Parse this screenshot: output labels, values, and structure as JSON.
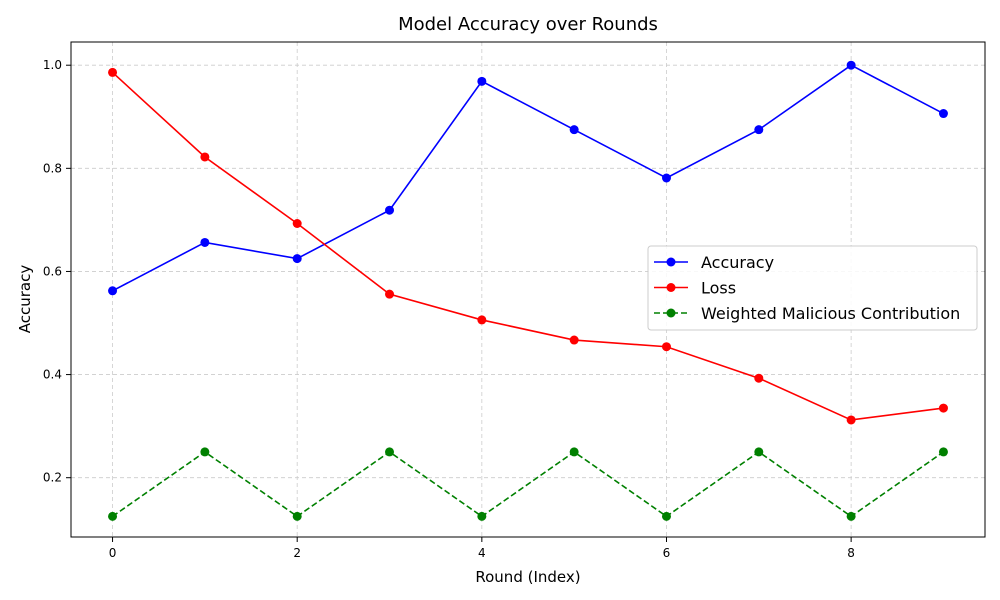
{
  "chart_data": {
    "type": "line",
    "title": "Model Accuracy over Rounds",
    "xlabel": "Round (Index)",
    "ylabel": "Accuracy",
    "x": [
      0,
      1,
      2,
      3,
      4,
      5,
      6,
      7,
      8,
      9
    ],
    "xlim": [
      -0.45,
      9.45
    ],
    "ylim": [
      0.085,
      1.045
    ],
    "xticks": [
      "0",
      "2",
      "4",
      "6",
      "8"
    ],
    "yticks": [
      "0.2",
      "0.4",
      "0.6",
      "0.8",
      "1.0"
    ],
    "grid": true,
    "legend_position": "center-right",
    "series": [
      {
        "name": "Accuracy",
        "color": "#0000ff",
        "linestyle": "solid",
        "values": [
          0.5625,
          0.65625,
          0.625,
          0.71875,
          0.96875,
          0.875,
          0.78125,
          0.875,
          1.0,
          0.90625
        ]
      },
      {
        "name": "Loss",
        "color": "#ff0000",
        "linestyle": "solid",
        "values": [
          0.986,
          0.822,
          0.693,
          0.556,
          0.506,
          0.467,
          0.454,
          0.393,
          0.312,
          0.335
        ]
      },
      {
        "name": "Weighted Malicious Contribution",
        "color": "#008000",
        "linestyle": "dashed",
        "values": [
          0.125,
          0.25,
          0.125,
          0.25,
          0.125,
          0.25,
          0.125,
          0.25,
          0.125,
          0.25
        ]
      }
    ]
  }
}
